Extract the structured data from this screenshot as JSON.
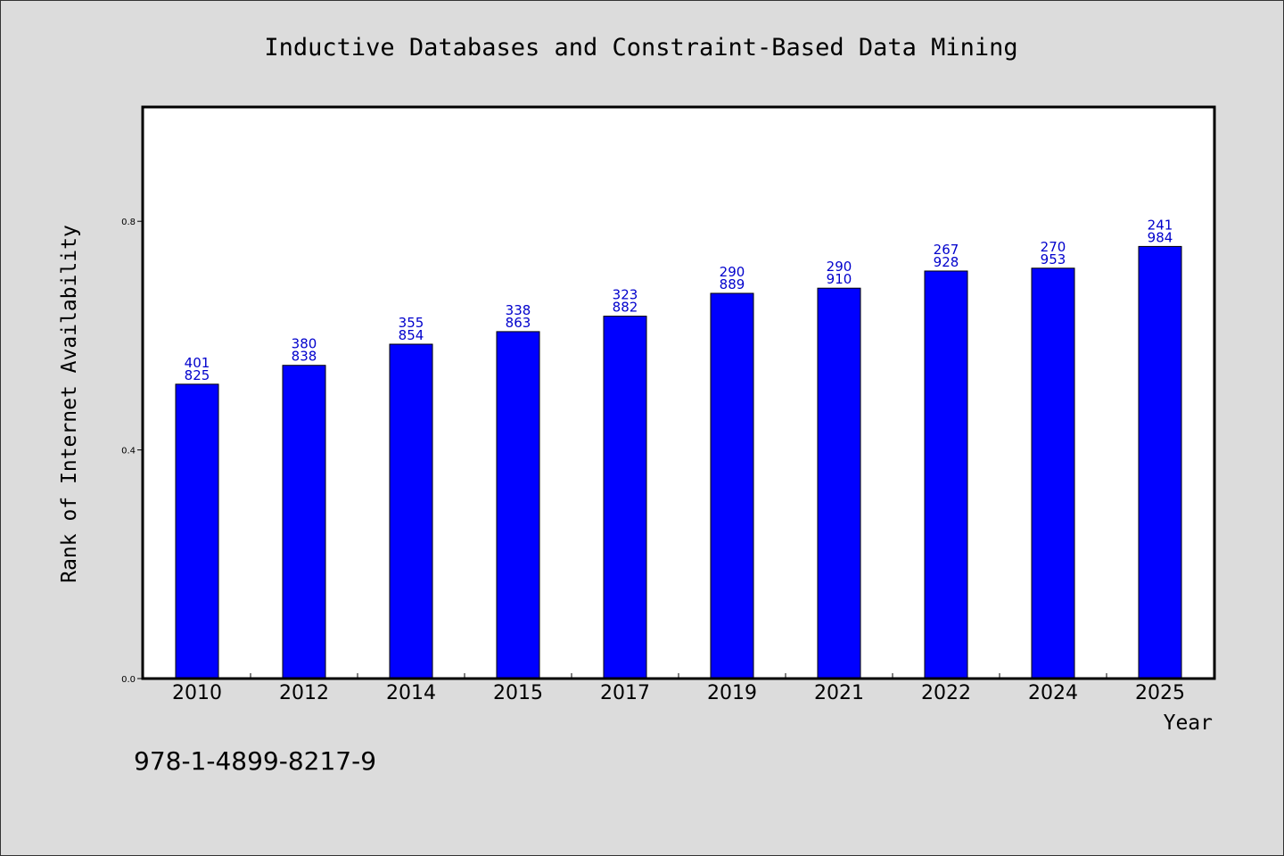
{
  "chart_data": {
    "type": "bar",
    "title": "Inductive Databases and Constraint-Based Data Mining",
    "xlabel": "Year",
    "ylabel": "Rank of Internet Availability",
    "categories": [
      "2010",
      "2012",
      "2014",
      "2015",
      "2017",
      "2019",
      "2021",
      "2022",
      "2024",
      "2025"
    ],
    "values": [
      0.515,
      0.548,
      0.585,
      0.607,
      0.634,
      0.674,
      0.683,
      0.713,
      0.718,
      0.756
    ],
    "data_labels": [
      [
        "401",
        "825"
      ],
      [
        "380",
        "838"
      ],
      [
        "355",
        "854"
      ],
      [
        "338",
        "863"
      ],
      [
        "323",
        "882"
      ],
      [
        "290",
        "889"
      ],
      [
        "290",
        "910"
      ],
      [
        "267",
        "928"
      ],
      [
        "270",
        "953"
      ],
      [
        "241",
        "984"
      ]
    ],
    "ylim": [
      0,
      1.0
    ],
    "yticks": [
      0.0,
      0.4,
      0.8
    ],
    "ytick_labels": [
      "0.0",
      "0.4",
      "0.8"
    ],
    "grid": false,
    "legend": "none",
    "colors": {
      "bar": "#0000ff",
      "data_label": "#0000cc",
      "background": "#dcdcdc",
      "plot_background": "#ffffff"
    }
  },
  "footer": {
    "isbn": "978-1-4899-8217-9"
  }
}
